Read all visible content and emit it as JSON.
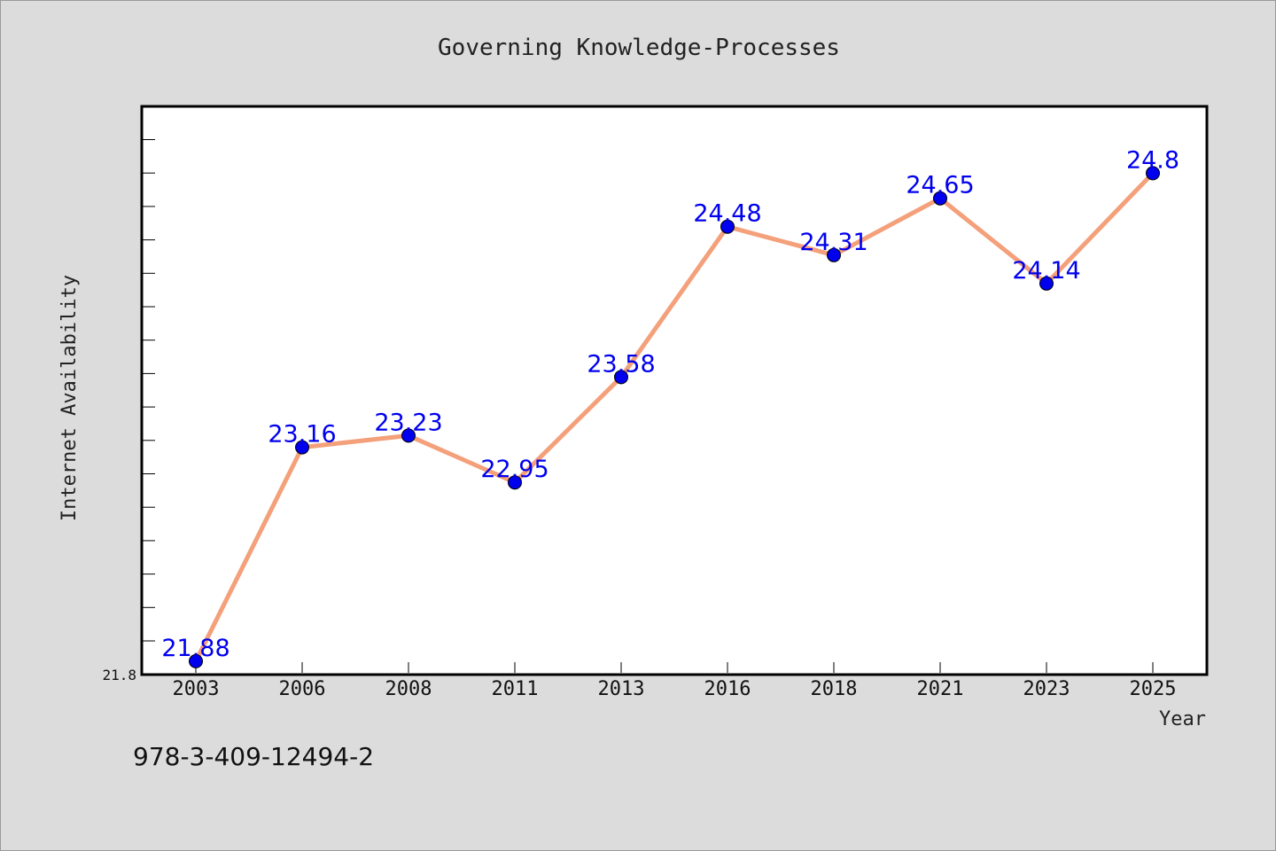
{
  "chart_data": {
    "type": "line",
    "title": "Governing Knowledge-Processes",
    "xlabel": "Year",
    "ylabel": "Internet Availability",
    "categories": [
      "2003",
      "2006",
      "2008",
      "2011",
      "2013",
      "2016",
      "2018",
      "2021",
      "2023",
      "2025"
    ],
    "series": [
      {
        "values": [
          21.88,
          23.16,
          23.23,
          22.95,
          23.58,
          24.48,
          24.31,
          24.65,
          24.14,
          24.8
        ],
        "labels": [
          "21.88",
          "23.16",
          "23.23",
          "22.95",
          "23.58",
          "24.48",
          "24.31",
          "24.65",
          "24.14",
          "24.8"
        ],
        "line_color": "#f4a07a",
        "marker_color": "#0000ee"
      }
    ],
    "ylim": [
      21.8,
      25.2
    ],
    "ytick_labels": [
      "21.8"
    ],
    "grid": false,
    "legend": "none"
  },
  "footnote": "978-3-409-12494-2"
}
